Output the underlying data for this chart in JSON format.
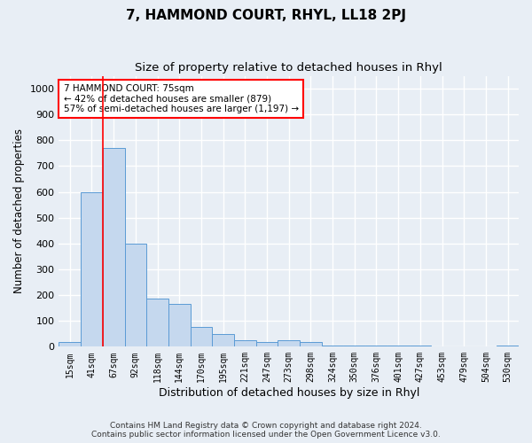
{
  "title": "7, HAMMOND COURT, RHYL, LL18 2PJ",
  "subtitle": "Size of property relative to detached houses in Rhyl",
  "xlabel": "Distribution of detached houses by size in Rhyl",
  "ylabel": "Number of detached properties",
  "categories": [
    "15sqm",
    "41sqm",
    "67sqm",
    "92sqm",
    "118sqm",
    "144sqm",
    "170sqm",
    "195sqm",
    "221sqm",
    "247sqm",
    "273sqm",
    "298sqm",
    "324sqm",
    "350sqm",
    "376sqm",
    "401sqm",
    "427sqm",
    "453sqm",
    "479sqm",
    "504sqm",
    "530sqm"
  ],
  "values": [
    20,
    600,
    770,
    400,
    185,
    165,
    75,
    50,
    25,
    20,
    25,
    20,
    5,
    5,
    5,
    5,
    5,
    0,
    0,
    0,
    5
  ],
  "bar_color": "#c5d8ee",
  "bar_edge_color": "#5b9bd5",
  "red_line_index": 2,
  "annotation_text": "7 HAMMOND COURT: 75sqm\n← 42% of detached houses are smaller (879)\n57% of semi-detached houses are larger (1,197) →",
  "ylim": [
    0,
    1050
  ],
  "yticks": [
    0,
    100,
    200,
    300,
    400,
    500,
    600,
    700,
    800,
    900,
    1000
  ],
  "footer_line1": "Contains HM Land Registry data © Crown copyright and database right 2024.",
  "footer_line2": "Contains public sector information licensed under the Open Government Licence v3.0.",
  "bg_color": "#e8eef5",
  "plot_bg_color": "#e8eef5",
  "grid_color": "#ffffff",
  "title_fontsize": 11,
  "subtitle_fontsize": 9.5
}
